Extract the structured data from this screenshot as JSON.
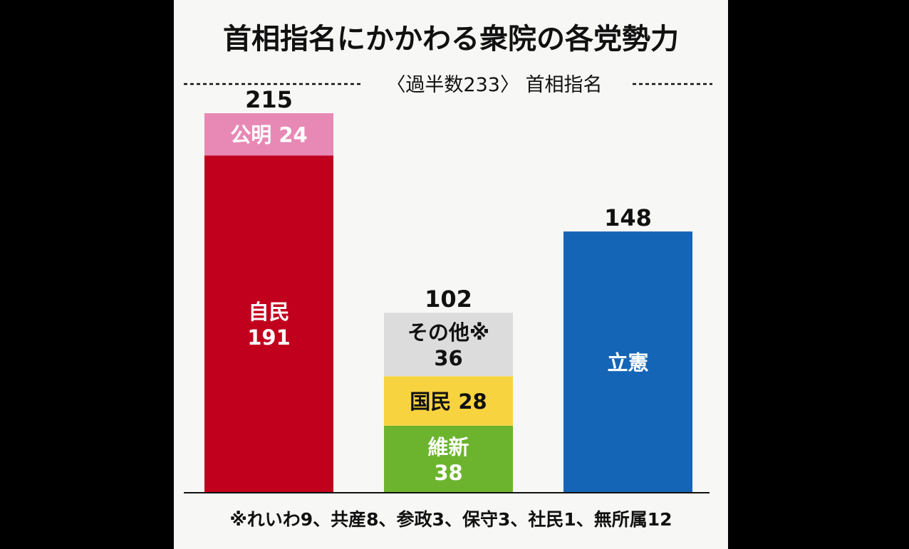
{
  "chart_data": {
    "type": "bar",
    "stacked": true,
    "title": "首相指名にかかわる衆院の各党勢力",
    "subtitle": "〈過半数233〉 首相指名",
    "categories": [
      "",
      "",
      ""
    ],
    "ylim": [
      0,
      233
    ],
    "grid": false,
    "legend": "none",
    "totals": [
      "215",
      "102",
      "148"
    ],
    "bars": [
      {
        "total": 215,
        "segments": [
          {
            "name": "自民",
            "value": 191,
            "label_lines": [
              "自民",
              "191"
            ],
            "color": "#c1001d",
            "text_color": "#ffffff"
          },
          {
            "name": "公明",
            "value": 24,
            "label_lines": [
              "公明 24"
            ],
            "color": "#e889b5",
            "text_color": "#ffffff"
          }
        ]
      },
      {
        "total": 102,
        "segments": [
          {
            "name": "維新",
            "value": 38,
            "label_lines": [
              "維新",
              "38"
            ],
            "color": "#6cb42d",
            "text_color": "#ffffff"
          },
          {
            "name": "国民",
            "value": 28,
            "label_lines": [
              "国民 28"
            ],
            "color": "#f8d340",
            "text_color": "#111111"
          },
          {
            "name": "その他※",
            "value": 36,
            "label_lines": [
              "その他※",
              "36"
            ],
            "color": "#dcdcdc",
            "text_color": "#111111"
          }
        ]
      },
      {
        "total": 148,
        "segments": [
          {
            "name": "立憲",
            "value": 148,
            "label_lines": [
              "立憲"
            ],
            "color": "#1565b6",
            "text_color": "#ffffff"
          }
        ]
      }
    ],
    "footnote": "※れいわ9、共産8、参政3、保守3、社民1、無所属12"
  }
}
